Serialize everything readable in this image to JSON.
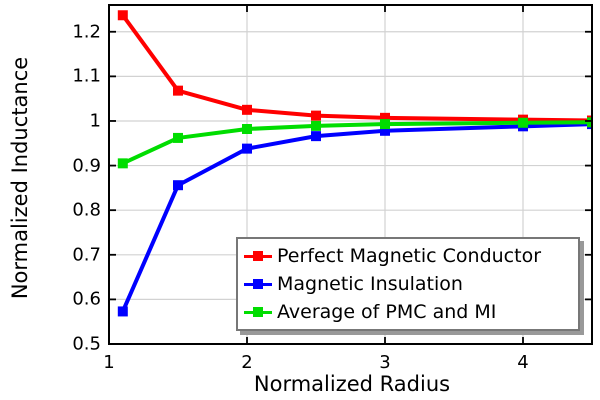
{
  "figure": {
    "background_color": "#ffffff",
    "text_color": "#000000"
  },
  "chart_data": {
    "type": "line",
    "title": "",
    "xlabel": "Normalized Radius",
    "ylabel": "Normalized Inductance",
    "xlim": [
      1,
      4.5
    ],
    "ylim": [
      0.5,
      1.26
    ],
    "x_ticks": [
      1,
      2,
      3,
      4
    ],
    "x_tick_labels": [
      "1",
      "2",
      "3",
      "4"
    ],
    "y_ticks": [
      0.5,
      0.6,
      0.7,
      0.8,
      0.9,
      1.0,
      1.1,
      1.2
    ],
    "y_tick_labels": [
      "0.5",
      "0.6",
      "0.7",
      "0.8",
      "0.9",
      "1",
      "1.1",
      "1.2"
    ],
    "grid": true,
    "grid_color": "#d2d2d2",
    "axis_color": "#000000",
    "legend": {
      "position": "inside-bottom-right",
      "border_color": "#777777",
      "shadow_color": "#999999",
      "background": "#ffffff"
    },
    "x": [
      1.1,
      1.5,
      2,
      2.5,
      3,
      4,
      4.5
    ],
    "series": [
      {
        "name": "Perfect Magnetic Conductor",
        "color": "#ff0000",
        "marker": "square",
        "values": [
          1.237,
          1.068,
          1.025,
          1.012,
          1.007,
          1.003,
          1.001
        ]
      },
      {
        "name": "Magnetic Insulation",
        "color": "#0000ff",
        "marker": "square",
        "values": [
          0.573,
          0.856,
          0.938,
          0.966,
          0.978,
          0.988,
          0.993
        ]
      },
      {
        "name": "Average of PMC and MI",
        "color": "#00dd00",
        "marker": "square",
        "values": [
          0.905,
          0.962,
          0.982,
          0.989,
          0.993,
          0.996,
          0.997
        ]
      }
    ]
  }
}
